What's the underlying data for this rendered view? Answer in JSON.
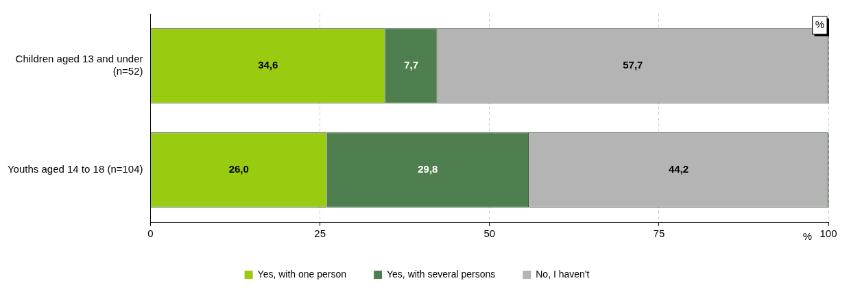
{
  "chart_data": {
    "type": "bar",
    "orientation": "horizontal",
    "stacked": true,
    "xlabel": "%",
    "annotations": [
      "%"
    ],
    "categories": [
      "Children aged 13 and under (n=52)",
      "Youths aged 14 to 18 (n=104)"
    ],
    "series": [
      {
        "name": "Yes, with one person",
        "color": "#99cc11",
        "values": [
          34.6,
          26.0
        ],
        "value_labels": [
          "34,6",
          "26,0"
        ]
      },
      {
        "name": "Yes, with several persons",
        "color": "#4f7f4f",
        "values": [
          7.7,
          29.8
        ],
        "value_labels": [
          "7,7",
          "29,8"
        ]
      },
      {
        "name": "No, I haven't",
        "color": "#b4b4b4",
        "values": [
          57.7,
          44.2
        ],
        "value_labels": [
          "57,7",
          "44,2"
        ]
      }
    ],
    "xlim": [
      0,
      100
    ],
    "xticks": [
      0,
      25,
      50,
      75,
      100
    ],
    "grid": "x",
    "legend": "bottom"
  }
}
